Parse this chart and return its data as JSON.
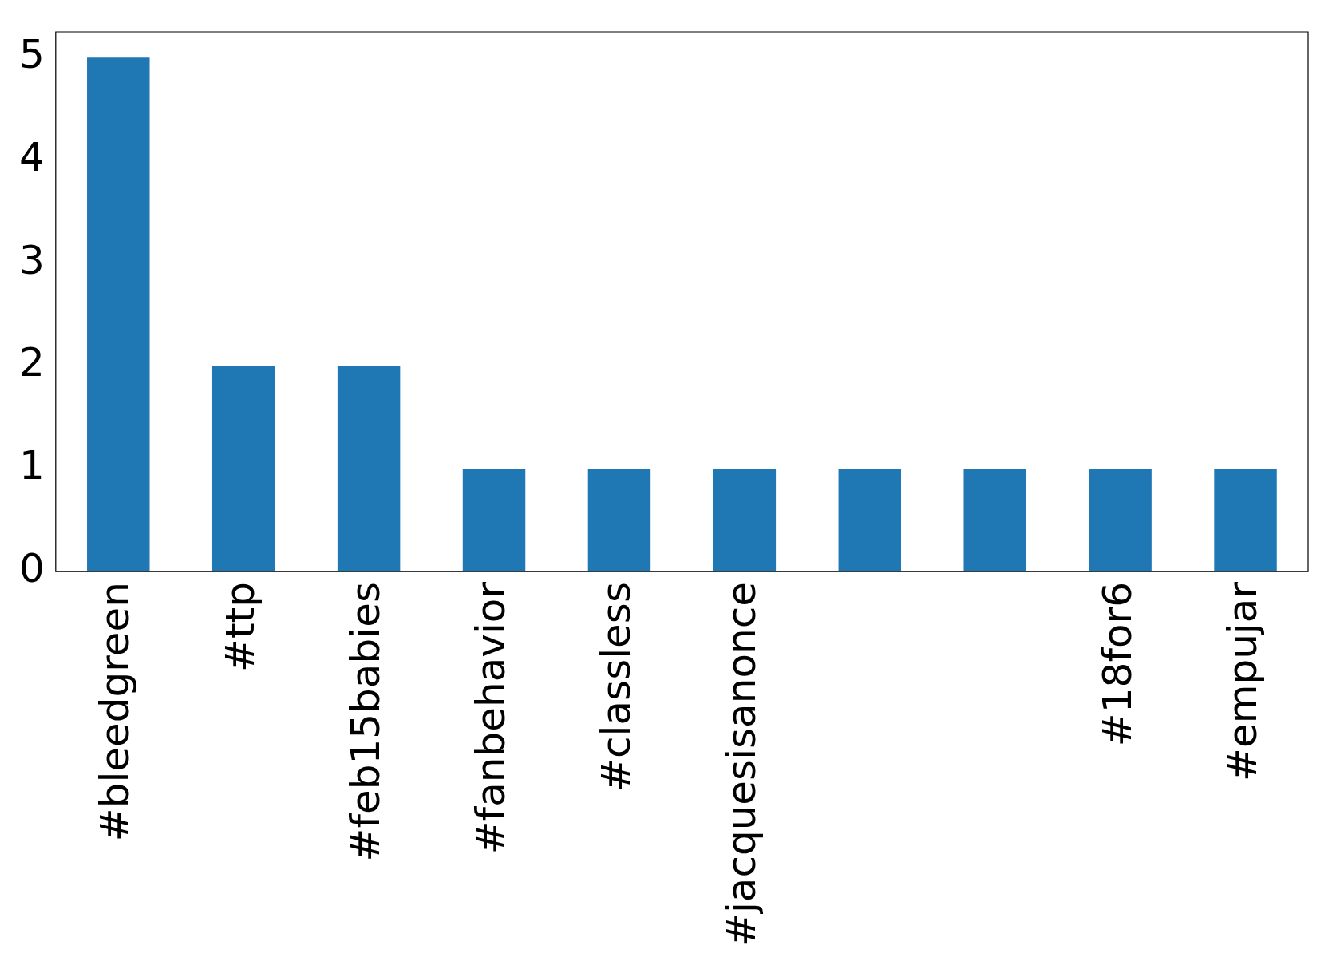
{
  "chart_data": {
    "type": "bar",
    "categories": [
      "#bleedgreen",
      "#ttp",
      "#feb15babies",
      "#fanbehavior",
      "#classless",
      "#jacquesisanonce",
      null,
      null,
      "#18for6",
      "#empujar"
    ],
    "values": [
      5,
      2,
      2,
      1,
      1,
      1,
      1,
      1,
      1,
      1
    ],
    "color": "#1f77b4",
    "ylim": [
      0,
      5.25
    ],
    "yticks": [
      0,
      1,
      2,
      3,
      4,
      5
    ],
    "grid": false,
    "legend": false
  }
}
